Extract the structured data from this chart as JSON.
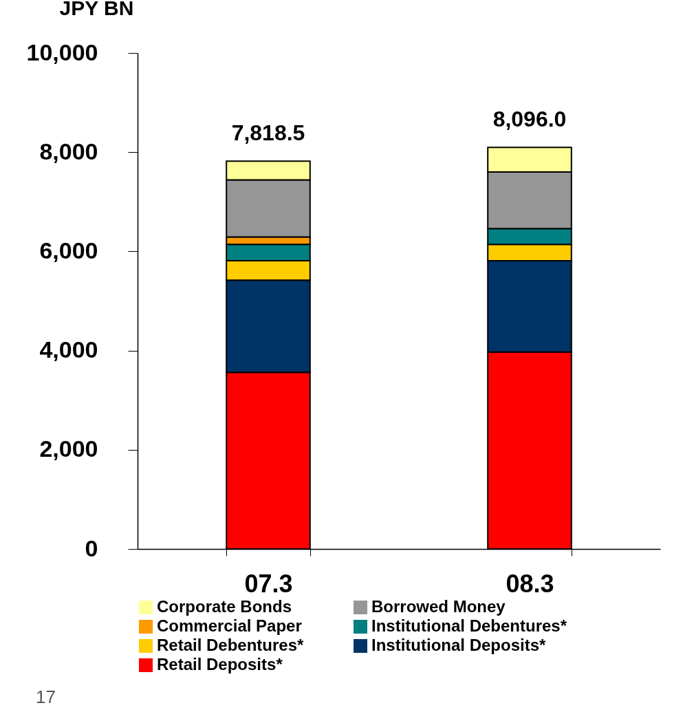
{
  "chart_data": {
    "type": "bar",
    "stacked": true,
    "ylabel": "JPY BN",
    "categories": [
      "07.3",
      "08.3"
    ],
    "series": [
      {
        "name": "Retail Deposits*",
        "color": "#ff0000",
        "values": [
          3560,
          3970
        ]
      },
      {
        "name": "Institutional Deposits*",
        "color": "#003366",
        "values": [
          1860,
          1840
        ]
      },
      {
        "name": "Retail Debentures*",
        "color": "#ffcc00",
        "values": [
          390,
          330
        ]
      },
      {
        "name": "Institutional Debentures*",
        "color": "#008080",
        "values": [
          330,
          320
        ]
      },
      {
        "name": "Commercial Paper",
        "color": "#ff9900",
        "values": [
          150,
          null
        ]
      },
      {
        "name": "Borrowed Money",
        "color": "#969696",
        "values": [
          1150,
          1140
        ]
      },
      {
        "name": "Corporate Bonds",
        "color": "#ffff99",
        "values": [
          378.5,
          496
        ]
      }
    ],
    "totals": [
      "7,818.5",
      "8,096.0"
    ],
    "ylim": [
      0,
      10000
    ],
    "yticks": [
      0,
      {
        "value": 2000,
        "label": "2,000"
      },
      {
        "value": 4000,
        "label": "4,000"
      },
      {
        "value": 6000,
        "label": "6,000"
      },
      {
        "value": 8000,
        "label": "8,000"
      },
      {
        "value": 10000,
        "label": "10,000"
      }
    ],
    "grid": false,
    "legend": "bottom",
    "annotations": [
      "17"
    ]
  }
}
